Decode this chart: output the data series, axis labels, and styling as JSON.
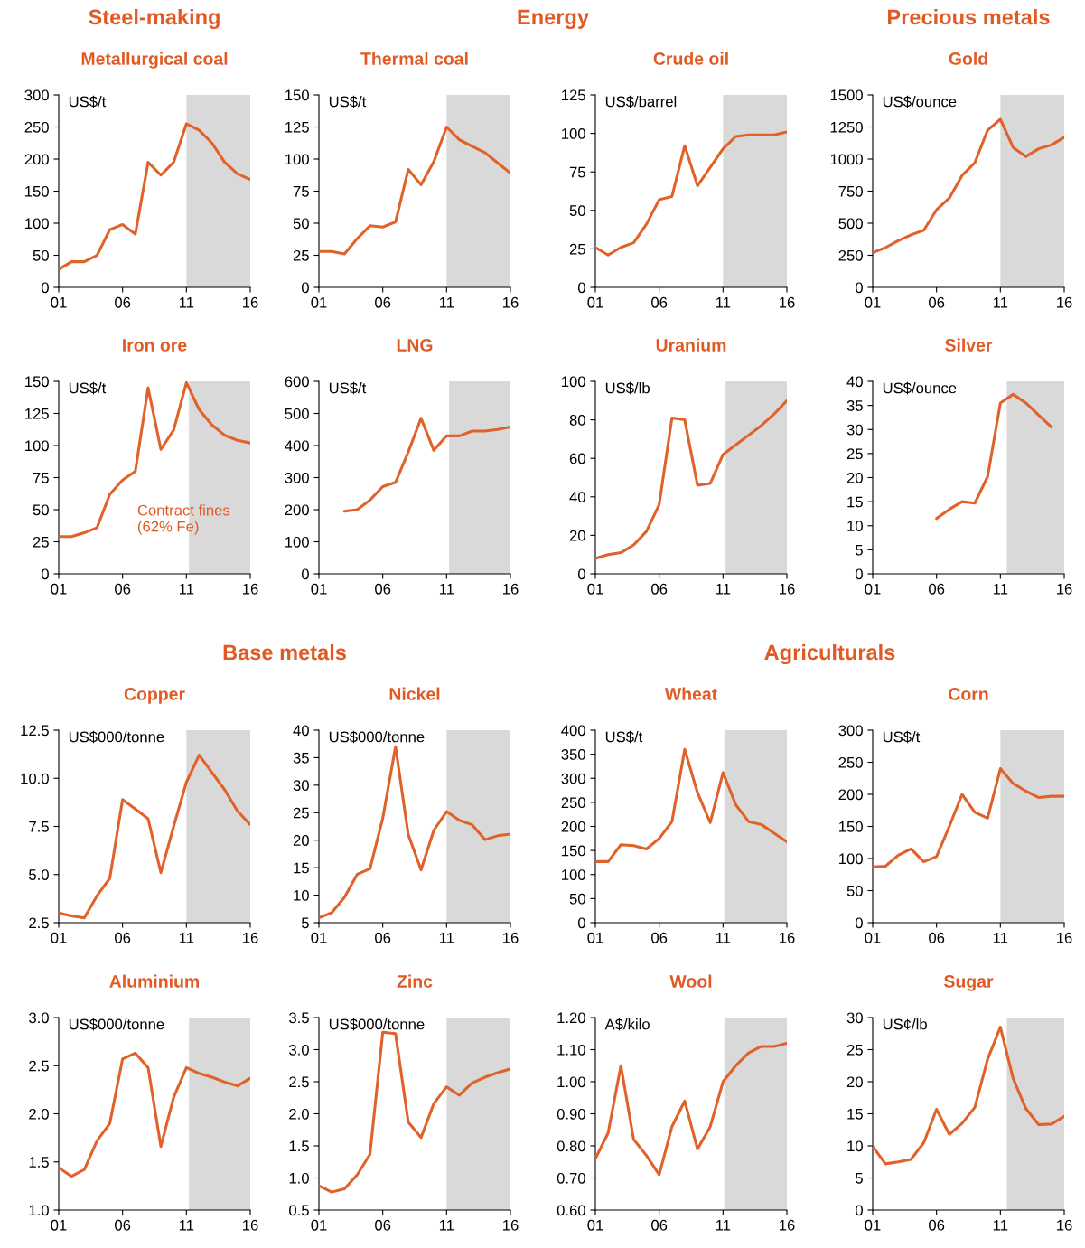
{
  "chart_data": [
    {
      "type": "line",
      "title": "Metallurgical coal",
      "ylabel": "US$/t",
      "annotations": [
        "Steel-making"
      ],
      "x": [
        2001,
        2002,
        2003,
        2004,
        2005,
        2006,
        2007,
        2008,
        2009,
        2010,
        2011,
        2012,
        2013,
        2014,
        2015,
        2016
      ],
      "series": [
        {
          "color": "#e0622a",
          "values": [
            28,
            40,
            40,
            50,
            90,
            98,
            83,
            195,
            175,
            195,
            255,
            245,
            225,
            195,
            177,
            168
          ]
        }
      ],
      "xlim": [
        2001,
        2016
      ],
      "xticks": [
        {
          "value": 2001,
          "label": "01"
        },
        {
          "value": 2006,
          "label": "06"
        },
        {
          "value": 2011,
          "label": "11"
        },
        {
          "value": 2016,
          "label": "16"
        }
      ],
      "ylim": [
        0,
        300
      ],
      "yticks": [
        0,
        50,
        100,
        150,
        200,
        250,
        300
      ],
      "bands": [
        {
          "axis": "x",
          "from": 2011,
          "to": 2016,
          "color": "#d9d9d9"
        }
      ]
    },
    {
      "type": "line",
      "title": "Thermal coal",
      "ylabel": "US$/t",
      "annotations": [
        "Energy"
      ],
      "x": [
        2001,
        2002,
        2003,
        2004,
        2005,
        2006,
        2007,
        2008,
        2009,
        2010,
        2011,
        2012,
        2013,
        2014,
        2015,
        2016
      ],
      "series": [
        {
          "color": "#e0622a",
          "values": [
            28,
            28,
            26,
            38,
            48,
            47,
            51,
            92,
            80,
            98,
            125,
            115,
            110,
            105,
            97,
            89
          ]
        }
      ],
      "xlim": [
        2001,
        2016
      ],
      "xticks": [
        {
          "value": 2001,
          "label": "01"
        },
        {
          "value": 2006,
          "label": "06"
        },
        {
          "value": 2011,
          "label": "11"
        },
        {
          "value": 2016,
          "label": "16"
        }
      ],
      "ylim": [
        0,
        150
      ],
      "yticks": [
        0,
        25,
        50,
        75,
        100,
        125,
        150
      ],
      "bands": [
        {
          "axis": "x",
          "from": 2011,
          "to": 2016,
          "color": "#d9d9d9"
        }
      ]
    },
    {
      "type": "line",
      "title": "Crude oil",
      "ylabel": "US$/barrel",
      "x": [
        2001,
        2002,
        2003,
        2004,
        2005,
        2006,
        2007,
        2008,
        2009,
        2010,
        2011,
        2012,
        2013,
        2014,
        2015,
        2016
      ],
      "series": [
        {
          "color": "#e0622a",
          "values": [
            26,
            21,
            26,
            29,
            41,
            57,
            59,
            92,
            66,
            78,
            90,
            98,
            99,
            99,
            99,
            101
          ]
        }
      ],
      "xlim": [
        2001,
        2016
      ],
      "xticks": [
        {
          "value": 2001,
          "label": "01"
        },
        {
          "value": 2006,
          "label": "06"
        },
        {
          "value": 2011,
          "label": "11"
        },
        {
          "value": 2016,
          "label": "16"
        }
      ],
      "ylim": [
        0,
        125
      ],
      "yticks": [
        0,
        25,
        50,
        75,
        100,
        125
      ],
      "bands": [
        {
          "axis": "x",
          "from": 2011,
          "to": 2016,
          "color": "#d9d9d9"
        }
      ]
    },
    {
      "type": "line",
      "title": "Gold",
      "ylabel": "US$/ounce",
      "annotations": [
        "Precious metals"
      ],
      "x": [
        2001,
        2002,
        2003,
        2004,
        2005,
        2006,
        2007,
        2008,
        2009,
        2010,
        2011,
        2012,
        2013,
        2014,
        2015,
        2016
      ],
      "series": [
        {
          "color": "#e0622a",
          "values": [
            271,
            310,
            363,
            409,
            445,
            604,
            696,
            872,
            972,
            1225,
            1310,
            1090,
            1020,
            1080,
            1110,
            1170
          ]
        }
      ],
      "xlim": [
        2001,
        2016
      ],
      "xticks": [
        {
          "value": 2001,
          "label": "01"
        },
        {
          "value": 2006,
          "label": "06"
        },
        {
          "value": 2011,
          "label": "11"
        },
        {
          "value": 2016,
          "label": "16"
        }
      ],
      "ylim": [
        0,
        1500
      ],
      "yticks": [
        0,
        250,
        500,
        750,
        1000,
        1250,
        1500
      ],
      "bands": [
        {
          "axis": "x",
          "from": 2011,
          "to": 2016,
          "color": "#d9d9d9"
        }
      ]
    },
    {
      "type": "line",
      "title": "Iron ore",
      "ylabel": "US$/t",
      "annotations": [
        "Contract fines\n(62% Fe)"
      ],
      "x": [
        2001,
        2002,
        2003,
        2004,
        2005,
        2006,
        2007,
        2008,
        2009,
        2010,
        2011,
        2012,
        2013,
        2014,
        2015,
        2016
      ],
      "series": [
        {
          "color": "#e0622a",
          "values": [
            29,
            29,
            32,
            36,
            62,
            73,
            80,
            145,
            97,
            112,
            149,
            128,
            116,
            108,
            104,
            102
          ]
        }
      ],
      "xlim": [
        2001,
        2016
      ],
      "xticks": [
        {
          "value": 2001,
          "label": "01"
        },
        {
          "value": 2006,
          "label": "06"
        },
        {
          "value": 2011,
          "label": "11"
        },
        {
          "value": 2016,
          "label": "16"
        }
      ],
      "ylim": [
        0,
        150
      ],
      "yticks": [
        0,
        25,
        50,
        75,
        100,
        125,
        150
      ],
      "bands": [
        {
          "axis": "x",
          "from": 2011.2,
          "to": 2016,
          "color": "#d9d9d9"
        }
      ]
    },
    {
      "type": "line",
      "title": "LNG",
      "ylabel": "US$/t",
      "series": [
        {
          "color": "#e0622a",
          "x": [
            2003,
            2004,
            2005,
            2006,
            2007,
            2008,
            2009,
            2010,
            2011,
            2012,
            2013,
            2014,
            2015,
            2016
          ],
          "values": [
            195,
            200,
            230,
            272,
            285,
            380,
            485,
            385,
            430,
            430,
            445,
            445,
            450,
            458
          ]
        }
      ],
      "xlim": [
        2001,
        2016
      ],
      "xticks": [
        {
          "value": 2001,
          "label": "01"
        },
        {
          "value": 2006,
          "label": "06"
        },
        {
          "value": 2011,
          "label": "11"
        },
        {
          "value": 2016,
          "label": "16"
        }
      ],
      "ylim": [
        0,
        600
      ],
      "yticks": [
        0,
        100,
        200,
        300,
        400,
        500,
        600
      ],
      "bands": [
        {
          "axis": "x",
          "from": 2011.2,
          "to": 2016,
          "color": "#d9d9d9"
        }
      ]
    },
    {
      "type": "line",
      "title": "Uranium",
      "ylabel": "US$/lb",
      "x": [
        2001,
        2002,
        2003,
        2004,
        2005,
        2006,
        2007,
        2008,
        2009,
        2010,
        2011,
        2012,
        2013,
        2014,
        2015,
        2016
      ],
      "series": [
        {
          "color": "#e0622a",
          "values": [
            8,
            10,
            11,
            15,
            22,
            36,
            81,
            80,
            46,
            47,
            62,
            67,
            72,
            77,
            83,
            90
          ]
        }
      ],
      "xlim": [
        2001,
        2016
      ],
      "xticks": [
        {
          "value": 2001,
          "label": "01"
        },
        {
          "value": 2006,
          "label": "06"
        },
        {
          "value": 2011,
          "label": "11"
        },
        {
          "value": 2016,
          "label": "16"
        }
      ],
      "ylim": [
        0,
        100
      ],
      "yticks": [
        0,
        20,
        40,
        60,
        80,
        100
      ],
      "bands": [
        {
          "axis": "x",
          "from": 2011.2,
          "to": 2016,
          "color": "#d9d9d9"
        }
      ]
    },
    {
      "type": "line",
      "title": "Silver",
      "ylabel": "US$/ounce",
      "series": [
        {
          "color": "#e0622a",
          "x": [
            2006,
            2007,
            2008,
            2009,
            2010,
            2011,
            2012,
            2013,
            2014,
            2015
          ],
          "values": [
            11.5,
            13.4,
            15,
            14.7,
            20.2,
            35.5,
            37.3,
            35.5,
            33,
            30.5
          ]
        }
      ],
      "xlim": [
        2001,
        2016
      ],
      "xticks": [
        {
          "value": 2001,
          "label": "01"
        },
        {
          "value": 2006,
          "label": "06"
        },
        {
          "value": 2011,
          "label": "11"
        },
        {
          "value": 2016,
          "label": "16"
        }
      ],
      "ylim": [
        0,
        40
      ],
      "yticks": [
        0,
        5,
        10,
        15,
        20,
        25,
        30,
        35,
        40
      ],
      "bands": [
        {
          "axis": "x",
          "from": 2011.5,
          "to": 2016,
          "color": "#d9d9d9"
        }
      ]
    },
    {
      "type": "line",
      "title": "Copper",
      "ylabel": "US$000/tonne",
      "annotations": [
        "Base metals"
      ],
      "x": [
        2001,
        2002,
        2003,
        2004,
        2005,
        2006,
        2007,
        2008,
        2009,
        2010,
        2011,
        2012,
        2013,
        2014,
        2015,
        2016
      ],
      "series": [
        {
          "color": "#e0622a",
          "values": [
            3.0,
            2.85,
            2.75,
            3.9,
            4.8,
            8.9,
            8.4,
            7.9,
            5.1,
            7.5,
            9.8,
            11.2,
            10.3,
            9.4,
            8.3,
            7.6
          ]
        }
      ],
      "xlim": [
        2001,
        2016
      ],
      "xticks": [
        {
          "value": 2001,
          "label": "01"
        },
        {
          "value": 2006,
          "label": "06"
        },
        {
          "value": 2011,
          "label": "11"
        },
        {
          "value": 2016,
          "label": "16"
        }
      ],
      "ylim": [
        2.5,
        12.5
      ],
      "yticks": [
        2.5,
        {
          "value": 5,
          "label": "5.0"
        },
        7.5,
        {
          "value": 10,
          "label": "10.0"
        },
        12.5
      ],
      "bands": [
        {
          "axis": "x",
          "from": 2011,
          "to": 2016,
          "color": "#d9d9d9"
        }
      ]
    },
    {
      "type": "line",
      "title": "Nickel",
      "ylabel": "US$000/tonne",
      "x": [
        2001,
        2002,
        2003,
        2004,
        2005,
        2006,
        2007,
        2008,
        2009,
        2010,
        2011,
        2012,
        2013,
        2014,
        2015,
        2016
      ],
      "series": [
        {
          "color": "#e0622a",
          "values": [
            5.9,
            6.8,
            9.6,
            13.8,
            14.8,
            24,
            37,
            21,
            14.6,
            21.8,
            25.2,
            23.6,
            22.8,
            20.1,
            20.8,
            21.1
          ]
        }
      ],
      "xlim": [
        2001,
        2016
      ],
      "xticks": [
        {
          "value": 2001,
          "label": "01"
        },
        {
          "value": 2006,
          "label": "06"
        },
        {
          "value": 2011,
          "label": "11"
        },
        {
          "value": 2016,
          "label": "16"
        }
      ],
      "ylim": [
        5,
        40
      ],
      "yticks": [
        5,
        10,
        15,
        20,
        25,
        30,
        35,
        40
      ],
      "bands": [
        {
          "axis": "x",
          "from": 2011,
          "to": 2016,
          "color": "#d9d9d9"
        }
      ]
    },
    {
      "type": "line",
      "title": "Wheat",
      "ylabel": "US$/t",
      "annotations": [
        "Agriculturals"
      ],
      "x": [
        2001,
        2002,
        2003,
        2004,
        2005,
        2006,
        2007,
        2008,
        2009,
        2010,
        2011,
        2012,
        2013,
        2014,
        2015,
        2016
      ],
      "series": [
        {
          "color": "#e0622a",
          "values": [
            127,
            127,
            162,
            160,
            153,
            175,
            210,
            360,
            270,
            208,
            312,
            245,
            210,
            204,
            186,
            168
          ]
        }
      ],
      "xlim": [
        2001,
        2016
      ],
      "xticks": [
        {
          "value": 2001,
          "label": "01"
        },
        {
          "value": 2006,
          "label": "06"
        },
        {
          "value": 2011,
          "label": "11"
        },
        {
          "value": 2016,
          "label": "16"
        }
      ],
      "ylim": [
        0,
        400
      ],
      "yticks": [
        0,
        50,
        100,
        150,
        200,
        250,
        300,
        350,
        400
      ],
      "bands": [
        {
          "axis": "x",
          "from": 2011.1,
          "to": 2016,
          "color": "#d9d9d9"
        }
      ]
    },
    {
      "type": "line",
      "title": "Corn",
      "ylabel": "US$/t",
      "x": [
        2001,
        2002,
        2003,
        2004,
        2005,
        2006,
        2007,
        2008,
        2009,
        2010,
        2011,
        2012,
        2013,
        2014,
        2015,
        2016
      ],
      "series": [
        {
          "color": "#e0622a",
          "values": [
            87,
            88,
            105,
            115,
            95,
            103,
            150,
            200,
            172,
            163,
            240,
            217,
            205,
            195,
            197,
            197
          ]
        }
      ],
      "xlim": [
        2001,
        2016
      ],
      "xticks": [
        {
          "value": 2001,
          "label": "01"
        },
        {
          "value": 2006,
          "label": "06"
        },
        {
          "value": 2011,
          "label": "11"
        },
        {
          "value": 2016,
          "label": "16"
        }
      ],
      "ylim": [
        0,
        300
      ],
      "yticks": [
        0,
        50,
        100,
        150,
        200,
        250,
        300
      ],
      "bands": [
        {
          "axis": "x",
          "from": 2011,
          "to": 2016,
          "color": "#d9d9d9"
        }
      ]
    },
    {
      "type": "line",
      "title": "Aluminium",
      "ylabel": "US$000/tonne",
      "x": [
        2001,
        2002,
        2003,
        2004,
        2005,
        2006,
        2007,
        2008,
        2009,
        2010,
        2011,
        2012,
        2013,
        2014,
        2015,
        2016
      ],
      "series": [
        {
          "color": "#e0622a",
          "values": [
            1.44,
            1.35,
            1.42,
            1.72,
            1.9,
            2.57,
            2.63,
            2.48,
            1.66,
            2.17,
            2.48,
            2.42,
            2.38,
            2.33,
            2.29,
            2.37
          ]
        }
      ],
      "xlim": [
        2001,
        2016
      ],
      "xticks": [
        {
          "value": 2001,
          "label": "01"
        },
        {
          "value": 2006,
          "label": "06"
        },
        {
          "value": 2011,
          "label": "11"
        },
        {
          "value": 2016,
          "label": "16"
        }
      ],
      "ylim": [
        1,
        3
      ],
      "yticks": [
        {
          "value": 1,
          "label": "1.0"
        },
        1.5,
        {
          "value": 2,
          "label": "2.0"
        },
        2.5,
        {
          "value": 3,
          "label": "3.0"
        }
      ],
      "bands": [
        {
          "axis": "x",
          "from": 2011.2,
          "to": 2016,
          "color": "#d9d9d9"
        }
      ]
    },
    {
      "type": "line",
      "title": "Zinc",
      "ylabel": "US$000/tonne",
      "x": [
        2001,
        2002,
        2003,
        2004,
        2005,
        2006,
        2007,
        2008,
        2009,
        2010,
        2011,
        2012,
        2013,
        2014,
        2015,
        2016
      ],
      "series": [
        {
          "color": "#e0622a",
          "values": [
            0.88,
            0.78,
            0.83,
            1.05,
            1.37,
            3.27,
            3.25,
            1.87,
            1.63,
            2.16,
            2.42,
            2.29,
            2.48,
            2.57,
            2.64,
            2.7
          ]
        }
      ],
      "xlim": [
        2001,
        2016
      ],
      "xticks": [
        {
          "value": 2001,
          "label": "01"
        },
        {
          "value": 2006,
          "label": "06"
        },
        {
          "value": 2011,
          "label": "11"
        },
        {
          "value": 2016,
          "label": "16"
        }
      ],
      "ylim": [
        0.5,
        3.5
      ],
      "yticks": [
        0.5,
        {
          "value": 1,
          "label": "1.0"
        },
        1.5,
        {
          "value": 2,
          "label": "2.0"
        },
        2.5,
        {
          "value": 3,
          "label": "3.0"
        },
        3.5
      ],
      "bands": [
        {
          "axis": "x",
          "from": 2011,
          "to": 2016,
          "color": "#d9d9d9"
        }
      ]
    },
    {
      "type": "line",
      "title": "Wool",
      "ylabel": "A$/kilo",
      "x": [
        2001,
        2002,
        2003,
        2004,
        2005,
        2006,
        2007,
        2008,
        2009,
        2010,
        2011,
        2012,
        2013,
        2014,
        2015,
        2016
      ],
      "series": [
        {
          "color": "#e0622a",
          "values": [
            0.76,
            0.84,
            1.05,
            0.82,
            0.77,
            0.71,
            0.86,
            0.94,
            0.79,
            0.86,
            1.0,
            1.05,
            1.09,
            1.11,
            1.11,
            1.12
          ]
        }
      ],
      "xlim": [
        2001,
        2016
      ],
      "xticks": [
        {
          "value": 2001,
          "label": "01"
        },
        {
          "value": 2006,
          "label": "06"
        },
        {
          "value": 2011,
          "label": "11"
        },
        {
          "value": 2016,
          "label": "16"
        }
      ],
      "ylim": [
        0.6,
        1.2
      ],
      "yticks": [
        {
          "value": 0.6,
          "label": "0.60"
        },
        {
          "value": 0.7,
          "label": "0.70"
        },
        {
          "value": 0.8,
          "label": "0.80"
        },
        {
          "value": 0.9,
          "label": "0.90"
        },
        {
          "value": 1.0,
          "label": "1.00"
        },
        {
          "value": 1.1,
          "label": "1.10"
        },
        {
          "value": 1.2,
          "label": "1.20"
        }
      ],
      "bands": [
        {
          "axis": "x",
          "from": 2011.1,
          "to": 2016,
          "color": "#d9d9d9"
        }
      ]
    },
    {
      "type": "line",
      "title": "Sugar",
      "ylabel": "US¢/lb",
      "x": [
        2001,
        2002,
        2003,
        2004,
        2005,
        2006,
        2007,
        2008,
        2009,
        2010,
        2011,
        2012,
        2013,
        2014,
        2015,
        2016
      ],
      "series": [
        {
          "color": "#e0622a",
          "values": [
            9.9,
            7.2,
            7.5,
            7.9,
            10.5,
            15.7,
            11.8,
            13.5,
            16.0,
            23.5,
            28.5,
            20.5,
            15.8,
            13.3,
            13.4,
            14.6
          ]
        }
      ],
      "xlim": [
        2001,
        2016
      ],
      "xticks": [
        {
          "value": 2001,
          "label": "01"
        },
        {
          "value": 2006,
          "label": "06"
        },
        {
          "value": 2011,
          "label": "11"
        },
        {
          "value": 2016,
          "label": "16"
        }
      ],
      "ylim": [
        0,
        30
      ],
      "yticks": [
        0,
        5,
        10,
        15,
        20,
        25,
        30
      ],
      "bands": [
        {
          "axis": "x",
          "from": 2011.5,
          "to": 2016,
          "color": "#d9d9d9"
        }
      ]
    }
  ]
}
